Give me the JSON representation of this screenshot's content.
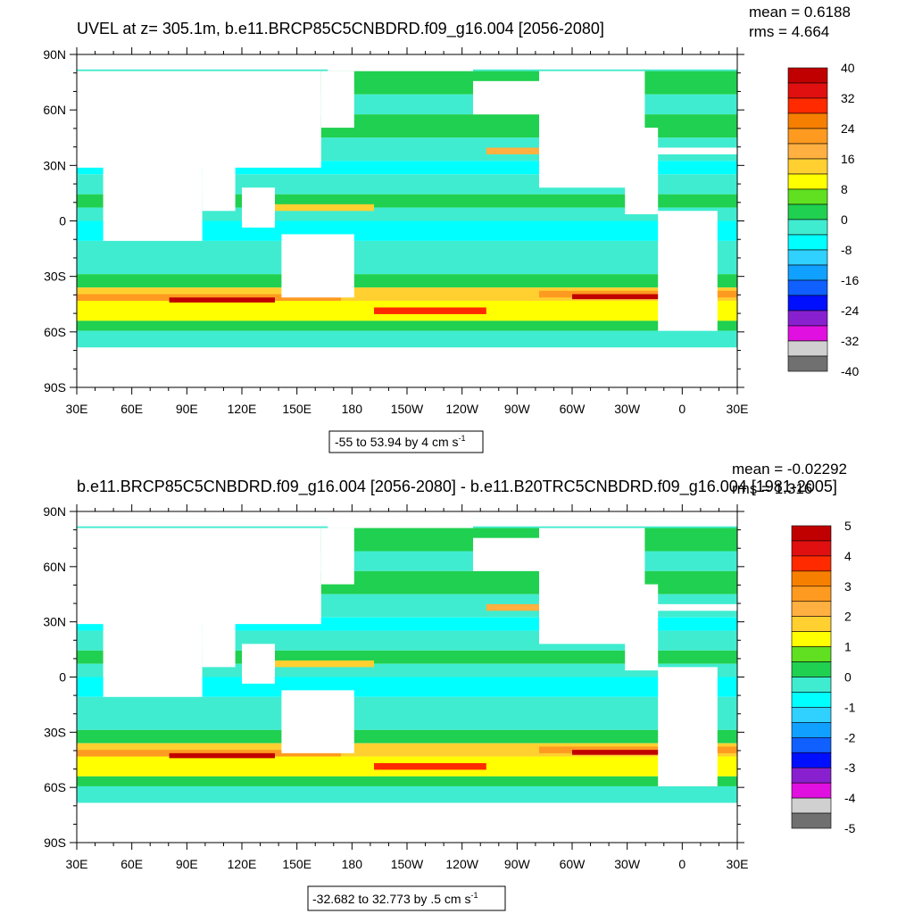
{
  "chart_data": [
    {
      "type": "heatmap",
      "title": "UVEL at z= 305.1m, b.e11.BRCP85C5CNBDRD.f09_g16.004 [2056-2080]",
      "stats": {
        "mean": "mean = 0.6188",
        "rms": "rms = 4.664"
      },
      "y_ticks": [
        "90N",
        "60N",
        "30N",
        "0",
        "30S",
        "60S",
        "90S"
      ],
      "x_ticks": [
        "30E",
        "60E",
        "90E",
        "120E",
        "150E",
        "180",
        "150W",
        "120W",
        "90W",
        "60W",
        "30W",
        "0",
        "30E"
      ],
      "colorbar_labels": [
        "40",
        "32",
        "24",
        "16",
        "8",
        "0",
        "-8",
        "-16",
        "-24",
        "-32",
        "-40"
      ],
      "colorbar_colors": [
        "#c00000",
        "#e01010",
        "#ff2a00",
        "#f77f00",
        "#ff9a20",
        "#ffb040",
        "#ffd030",
        "#ffff00",
        "#60e020",
        "#20d050",
        "#40ecd0",
        "#00ffff",
        "#30d0ff",
        "#10a0ff",
        "#1060ff",
        "#0010ff",
        "#8820d0",
        "#e010e0",
        "#d0d0d0",
        "#707070"
      ],
      "contour_info": "-55 to 53.94 by 4 cm s",
      "contour_exp": "-1",
      "ylim": [
        -90,
        90
      ],
      "xlim": [
        30,
        390
      ]
    },
    {
      "type": "heatmap",
      "title": "b.e11.BRCP85C5CNBDRD.f09_g16.004 [2056-2080] - b.e11.B20TRC5CNBDRD.f09_g16.004 [1981-2005]",
      "stats": {
        "mean": "mean = -0.02292",
        "rms": "rms = 1.316"
      },
      "y_ticks": [
        "90N",
        "60N",
        "30N",
        "0",
        "30S",
        "60S",
        "90S"
      ],
      "x_ticks": [
        "30E",
        "60E",
        "90E",
        "120E",
        "150E",
        "180",
        "150W",
        "120W",
        "90W",
        "60W",
        "30W",
        "0",
        "30E"
      ],
      "colorbar_labels": [
        "5",
        "4",
        "3",
        "2",
        "1",
        "0",
        "-1",
        "-2",
        "-3",
        "-4",
        "-5"
      ],
      "colorbar_colors": [
        "#c00000",
        "#e01010",
        "#ff2a00",
        "#f77f00",
        "#ff9a20",
        "#ffb040",
        "#ffd030",
        "#ffff00",
        "#60e020",
        "#20d050",
        "#40ecd0",
        "#00ffff",
        "#30d0ff",
        "#10a0ff",
        "#1060ff",
        "#0010ff",
        "#8820d0",
        "#e010e0",
        "#d0d0d0",
        "#707070"
      ],
      "contour_info": "-32.682 to 32.773 by .5 cm s",
      "contour_exp": "-1",
      "ylim": [
        -90,
        90
      ],
      "xlim": [
        30,
        390
      ]
    }
  ]
}
